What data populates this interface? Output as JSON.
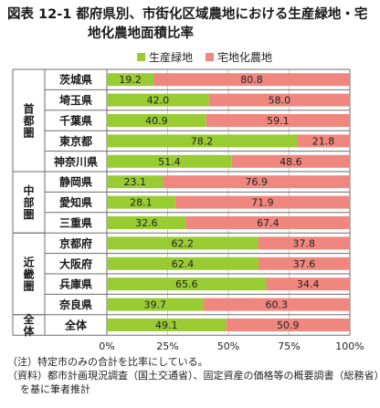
{
  "title": {
    "line1": "図表 12-1 都府県別、市街化区域農地における生産緑地・宅",
    "line2": "地化農地面積比率"
  },
  "colors": {
    "green": "#99cc33",
    "red": "#f0877e",
    "row_border": "#6e6e6e",
    "grid": "#c8c8c8"
  },
  "chart_data": {
    "type": "bar",
    "orientation": "horizontal",
    "stacked": true,
    "percent": true,
    "categories": [
      "茨城県",
      "埼玉県",
      "千葉県",
      "東京都",
      "神奈川県",
      "静岡県",
      "愛知県",
      "三重県",
      "京都府",
      "大阪府",
      "兵庫県",
      "奈良県",
      "全体"
    ],
    "series": [
      {
        "name": "生産緑地",
        "color": "#99cc33",
        "values": [
          19.2,
          42.0,
          40.9,
          78.2,
          51.4,
          23.1,
          28.1,
          32.6,
          62.2,
          62.4,
          65.6,
          39.7,
          49.1
        ]
      },
      {
        "name": "宅地化農地",
        "color": "#f0877e",
        "values": [
          80.8,
          58.0,
          59.1,
          21.8,
          48.6,
          76.9,
          71.9,
          67.4,
          37.8,
          37.6,
          34.4,
          60.3,
          50.9
        ]
      }
    ],
    "labels": [
      "19.2",
      "42.0",
      "40.9",
      "78.2",
      "51.4",
      "23.1",
      "28.1",
      "32.6",
      "62.2",
      "62.4",
      "65.6",
      "39.7",
      "49.1"
    ],
    "labels2": [
      "80.8",
      "58.0",
      "59.1",
      "21.8",
      "48.6",
      "76.9",
      "71.9",
      "67.4",
      "37.8",
      "37.6",
      "34.4",
      "60.3",
      "50.9"
    ],
    "groups": [
      {
        "name": "首都圏",
        "rows": [
          0,
          4
        ]
      },
      {
        "name": "中部圏",
        "rows": [
          5,
          7
        ]
      },
      {
        "name": "近畿圏",
        "rows": [
          8,
          11
        ]
      },
      {
        "name": "全体",
        "rows": [
          12,
          12
        ]
      }
    ],
    "xticks": [
      "0%",
      "25%",
      "50%",
      "75%",
      "100%"
    ],
    "xlim": [
      0,
      100
    ],
    "legend_position": "top",
    "grid": true
  },
  "notes": {
    "note1": "（注）特定市のみの合計を比率にしている。",
    "source1": "（資料）都市計画現況調査（国土交通省）、固定資産の価格等の概要調書（総務省）",
    "source2": "を基に筆者推計"
  }
}
